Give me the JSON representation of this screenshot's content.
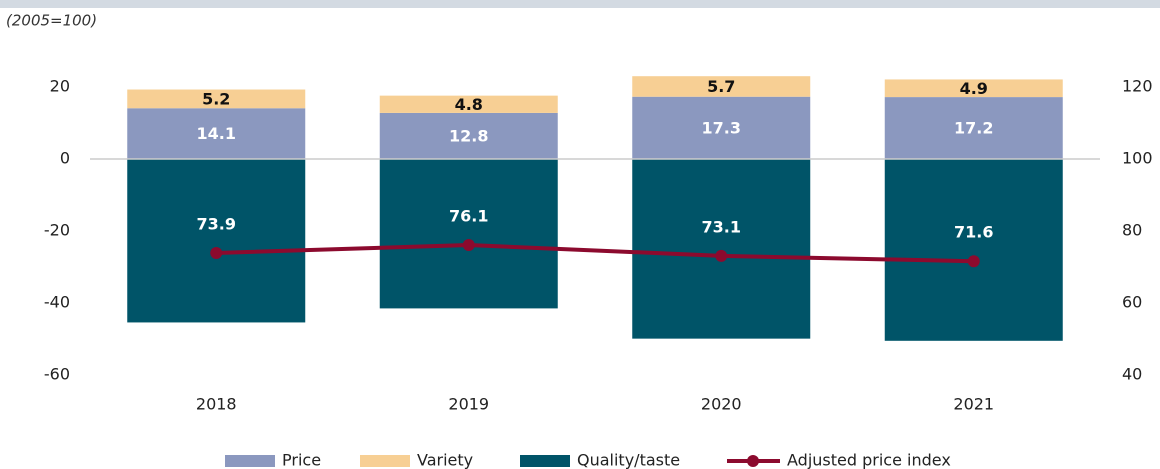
{
  "chart_data": {
    "type": "bar",
    "subtitle": "(2005=100)",
    "categories": [
      "2018",
      "2019",
      "2020",
      "2021"
    ],
    "ylim": [
      -60,
      20
    ],
    "yticks": [
      -60,
      -40,
      -20,
      0,
      20
    ],
    "y2lim": [
      40,
      120
    ],
    "y2ticks": [
      40,
      60,
      80,
      100,
      120
    ],
    "series": [
      {
        "name": "Price",
        "color": "#8b98bf",
        "values": [
          14.1,
          12.8,
          17.3,
          17.2
        ]
      },
      {
        "name": "Variety",
        "color": "#f7cf94",
        "values": [
          5.2,
          4.8,
          5.7,
          4.9
        ]
      },
      {
        "name": "Quality/taste",
        "color": "#005468",
        "values": [
          -45.4,
          -41.5,
          -49.9,
          -50.5
        ]
      },
      {
        "name": "Adjusted price index",
        "color": "#8c0a2e",
        "type": "line",
        "axis": "y2",
        "values": [
          73.9,
          76.1,
          73.1,
          71.6
        ]
      }
    ]
  }
}
